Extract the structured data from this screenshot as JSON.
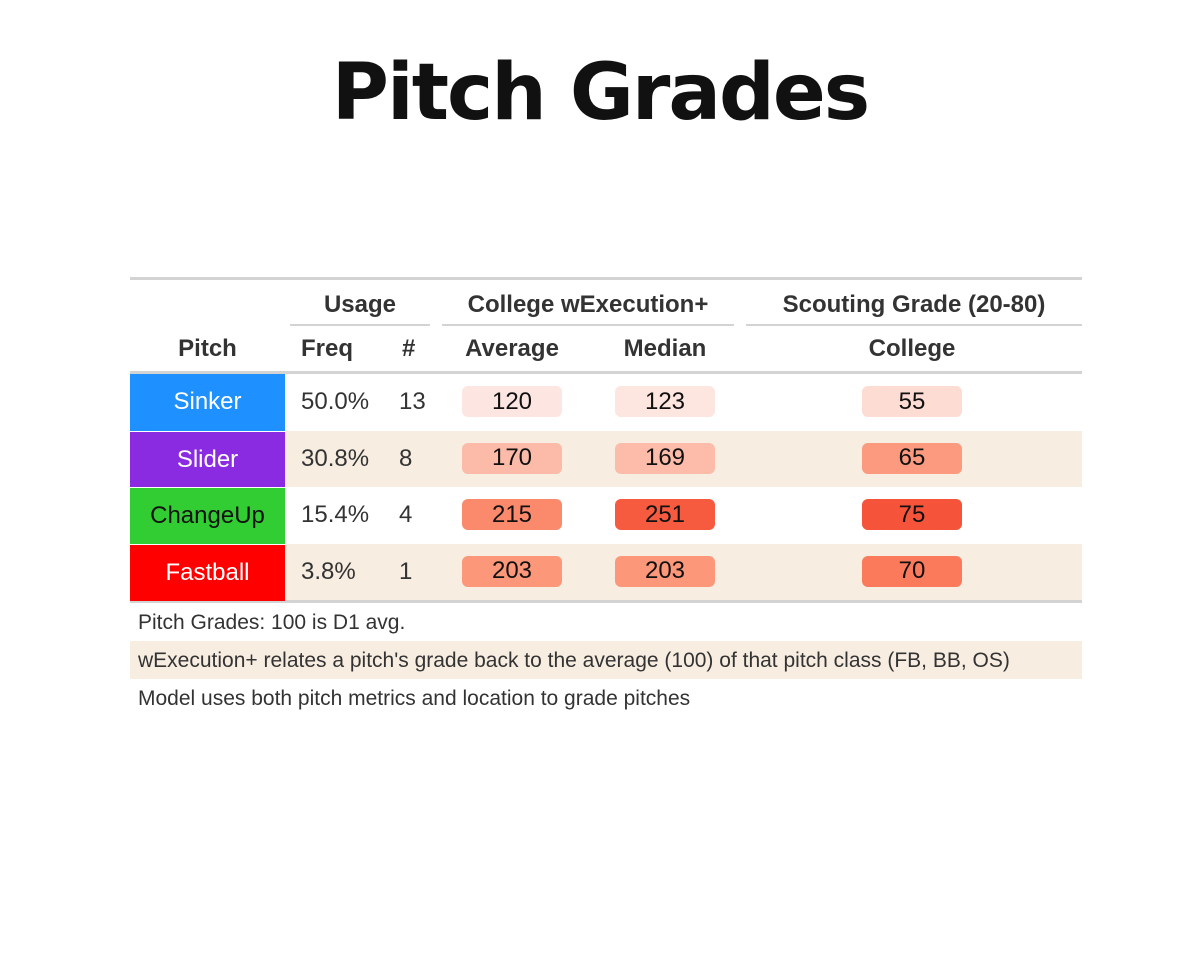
{
  "title": "Pitch Grades",
  "headers": {
    "group_usage": "Usage",
    "group_wexec": "College wExecution+",
    "group_scouting": "Scouting Grade (20-80)",
    "pitch": "Pitch",
    "freq": "Freq",
    "count": "#",
    "average": "Average",
    "median": "Median",
    "college": "College"
  },
  "chart_data": {
    "type": "table",
    "rows": [
      {
        "pitch": "Sinker",
        "pitch_color": "#1e90ff",
        "text_color": "#ffffff",
        "freq": "50.0%",
        "count": "13",
        "average": "120",
        "median": "123",
        "college": "55",
        "avg_color": "#fde6e1",
        "med_color": "#fde5e0",
        "col_color": "#fcdcd3"
      },
      {
        "pitch": "Slider",
        "pitch_color": "#8a2be2",
        "text_color": "#ffffff",
        "freq": "30.8%",
        "count": "8",
        "average": "170",
        "median": "169",
        "college": "65",
        "avg_color": "#fcbba8",
        "med_color": "#fcbca9",
        "col_color": "#fc9a7f"
      },
      {
        "pitch": "ChangeUp",
        "pitch_color": "#32cd32",
        "text_color": "#111111",
        "freq": "15.4%",
        "count": "4",
        "average": "215",
        "median": "251",
        "college": "75",
        "avg_color": "#fb8a6d",
        "med_color": "#f65a3f",
        "col_color": "#f5543a"
      },
      {
        "pitch": "Fastball",
        "pitch_color": "#ff0000",
        "text_color": "#ffffff",
        "freq": "3.8%",
        "count": "1",
        "average": "203",
        "median": "203",
        "college": "70",
        "avg_color": "#fc9779",
        "med_color": "#fc9779",
        "col_color": "#fb7a5c"
      }
    ]
  },
  "notes": [
    "Pitch Grades: 100 is D1 avg.",
    "wExecution+ relates a pitch's grade back to the average (100) of that pitch class (FB, BB, OS)",
    "Model uses both pitch metrics and location to grade pitches"
  ]
}
